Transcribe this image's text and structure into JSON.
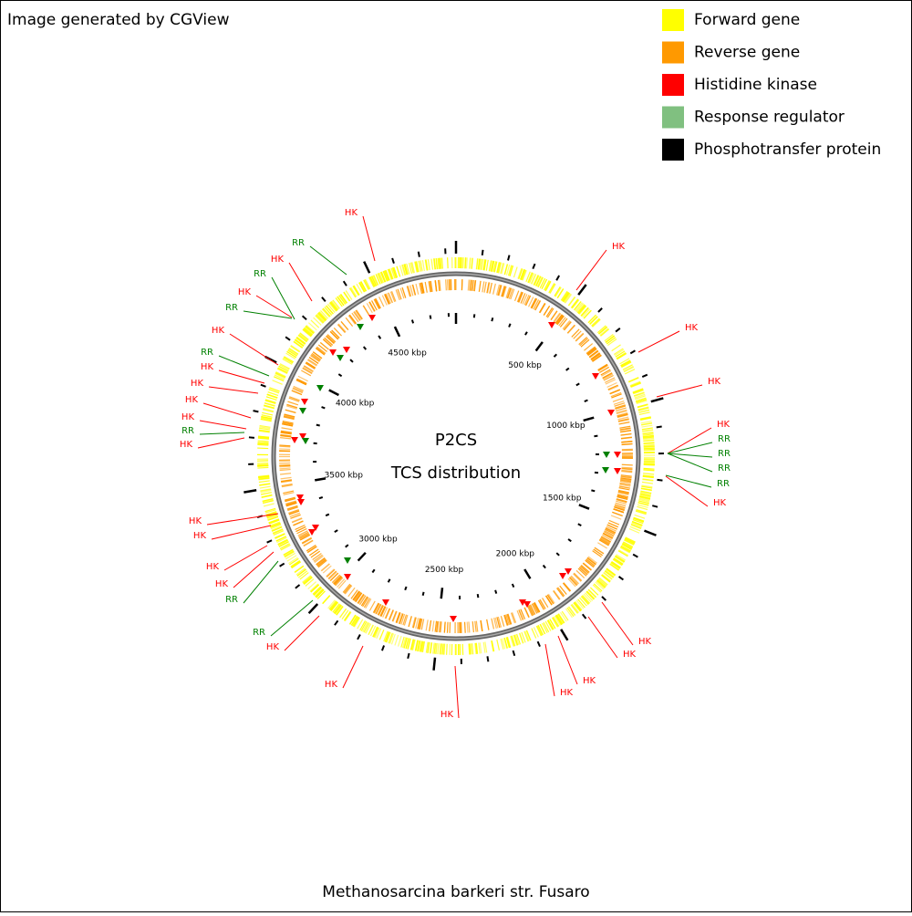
{
  "header": {
    "text": "Image generated by CGView"
  },
  "legend": [
    {
      "label": "Forward gene",
      "color": "#ffff00"
    },
    {
      "label": "Reverse gene",
      "color": "#ff9900"
    },
    {
      "label": "Histidine kinase",
      "color": "#ff0000"
    },
    {
      "label": "Response regulator",
      "color": "#80c080"
    },
    {
      "label": "Phosphotransfer protein",
      "color": "#000000"
    }
  ],
  "center": {
    "title": "P2CS",
    "subtitle": "TCS distribution"
  },
  "scale_labels": [
    "500 kbp",
    "1000 kbp",
    "1500 kbp",
    "2000 kbp",
    "2500 kbp",
    "3000 kbp",
    "3500 kbp",
    "4000 kbp",
    "4500 kbp"
  ],
  "feature_labels": [
    "HK",
    "HK",
    "HK",
    "HK",
    "HK",
    "RR",
    "RR",
    "RR",
    "RR",
    "HK",
    "HK",
    "HK",
    "HK",
    "HK",
    "HK",
    "HK",
    "HK",
    "RR",
    "RR",
    "HK",
    "HK",
    "HK",
    "HK",
    "HK",
    "RR",
    "HK",
    "HK",
    "HK",
    "HK",
    "RR",
    "HK",
    "RR",
    "HK",
    "RR",
    "HK",
    "RR"
  ],
  "footer": "Methanosarcina barkeri str. Fusaro"
}
